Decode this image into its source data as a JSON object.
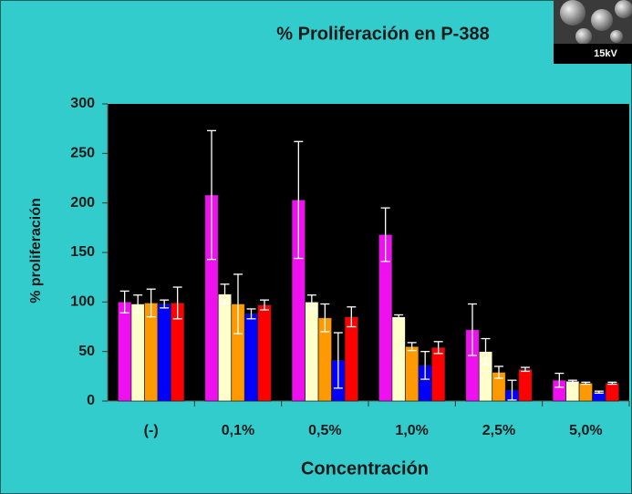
{
  "chart_data": {
    "type": "bar",
    "title": "% Proliferación en P-388",
    "x_label": "Concentración",
    "y_label": "% proliferación",
    "categories": [
      "(-)",
      "0,1%",
      "0,5%",
      "1,0%",
      "2,5%",
      "5,0%"
    ],
    "series": [
      {
        "color": "#ee10ee",
        "values": [
          100,
          208,
          203,
          168,
          72,
          21
        ],
        "errors": [
          11,
          65,
          59,
          27,
          26,
          7
        ]
      },
      {
        "color": "#ffffcc",
        "values": [
          98,
          108,
          100,
          85,
          50,
          20
        ],
        "errors": [
          9,
          10,
          7,
          2,
          13,
          1
        ]
      },
      {
        "color": "#ff9900",
        "values": [
          99,
          98,
          84,
          55,
          29,
          18
        ],
        "errors": [
          14,
          30,
          14,
          4,
          6,
          1
        ]
      },
      {
        "color": "#0000ff",
        "values": [
          98,
          88,
          41,
          36,
          11,
          9
        ],
        "errors": [
          4,
          5,
          28,
          14,
          10,
          1
        ]
      },
      {
        "color": "#ff0000",
        "values": [
          99,
          97,
          85,
          54,
          32,
          18
        ],
        "errors": [
          16,
          5,
          10,
          6,
          2,
          1
        ]
      }
    ],
    "ylim": [
      0,
      300
    ],
    "yticks": [
      0,
      50,
      100,
      150,
      200,
      250,
      300
    ],
    "error_bar_color": "#ffffff",
    "plot_background": "#000000"
  },
  "inset": {
    "label": "15kV"
  }
}
